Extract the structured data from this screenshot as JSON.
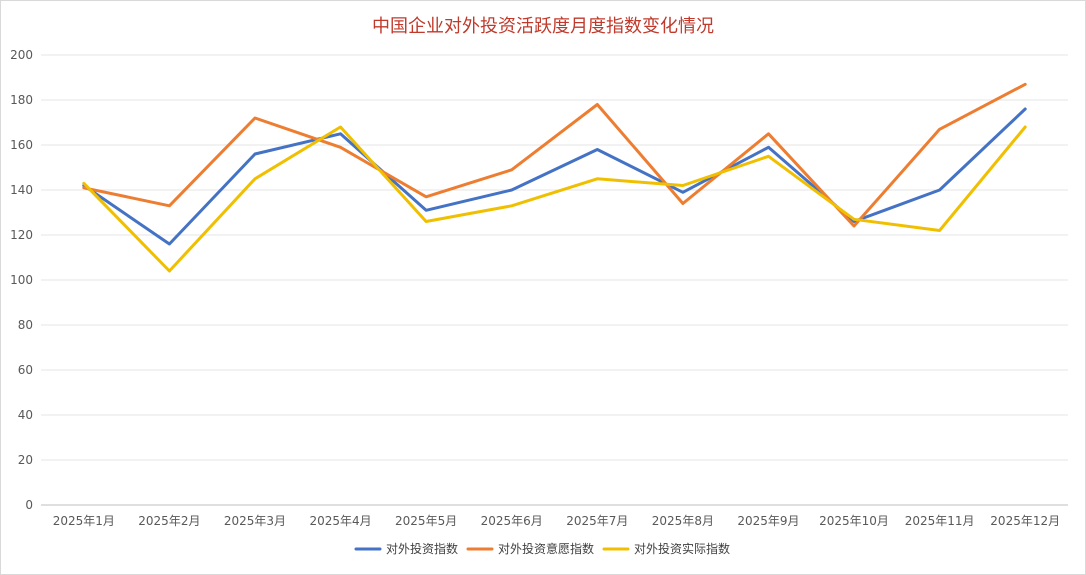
{
  "chart_data": {
    "type": "line",
    "title": "中国企业对外投资活跃度月度指数变化情况",
    "xlabel": "",
    "ylabel": "",
    "ylim": [
      0,
      200
    ],
    "yticks": [
      0,
      20,
      40,
      60,
      80,
      100,
      120,
      140,
      160,
      180,
      200
    ],
    "categories": [
      "2025年1月",
      "2025年2月",
      "2025年3月",
      "2025年4月",
      "2025年5月",
      "2025年6月",
      "2025年7月",
      "2025年8月",
      "2025年9月",
      "2025年10月",
      "2025年11月",
      "2025年12月"
    ],
    "grid": true,
    "legend_position": "bottom",
    "series": [
      {
        "name": "对外投资指数",
        "color": "#4472c4",
        "values": [
          142,
          116,
          156,
          165,
          131,
          140,
          158,
          139,
          159,
          126,
          140,
          176
        ]
      },
      {
        "name": "对外投资意愿指数",
        "color": "#ed7d31",
        "values": [
          141,
          133,
          172,
          159,
          137,
          149,
          178,
          134,
          165,
          124,
          167,
          187
        ]
      },
      {
        "name": "对外投资实际指数",
        "color": "#f0c000",
        "values": [
          143,
          104,
          145,
          168,
          126,
          133,
          145,
          142,
          155,
          127,
          122,
          168
        ]
      }
    ]
  }
}
